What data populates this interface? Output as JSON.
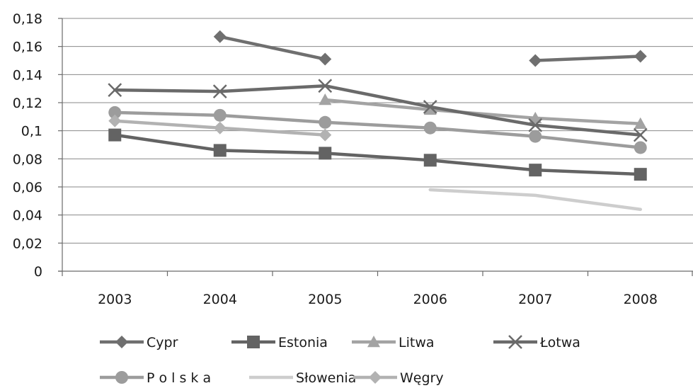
{
  "chart_data": {
    "type": "line",
    "categories": [
      "2003",
      "2004",
      "2005",
      "2006",
      "2007",
      "2008"
    ],
    "y_tick_labels": [
      "0",
      "0,02",
      "0,04",
      "0,06",
      "0,08",
      "0,1",
      "0,12",
      "0,14",
      "0,16",
      "0,18"
    ],
    "ylim": [
      0,
      0.18
    ],
    "grid": "horizontal",
    "legend_position": "bottom",
    "series": [
      {
        "name": "Cypr",
        "marker": "diamond",
        "color": "#6f6f6f",
        "values": [
          null,
          0.167,
          0.151,
          null,
          0.15,
          0.153
        ]
      },
      {
        "name": "Estonia",
        "marker": "square",
        "color": "#636363",
        "values": [
          0.097,
          0.086,
          0.084,
          0.079,
          0.072,
          0.069
        ]
      },
      {
        "name": "Litwa",
        "marker": "triangle",
        "color": "#a3a3a3",
        "values": [
          null,
          null,
          0.122,
          0.115,
          0.109,
          0.105
        ]
      },
      {
        "name": "Łotwa",
        "marker": "x",
        "color": "#6a6a6a",
        "values": [
          0.129,
          0.128,
          0.132,
          0.117,
          0.104,
          0.097
        ]
      },
      {
        "name": "P o l s k a",
        "marker": "circle",
        "color": "#9c9c9c",
        "values": [
          0.113,
          0.111,
          0.106,
          0.102,
          0.096,
          0.088
        ]
      },
      {
        "name": "Słowenia",
        "marker": "none",
        "color": "#cdcdcd",
        "values": [
          null,
          null,
          null,
          0.058,
          0.054,
          0.044
        ]
      },
      {
        "name": "Węgry",
        "marker": "diamond",
        "color": "#b2b2b2",
        "values": [
          0.107,
          0.102,
          0.097,
          null,
          null,
          null
        ]
      }
    ]
  }
}
